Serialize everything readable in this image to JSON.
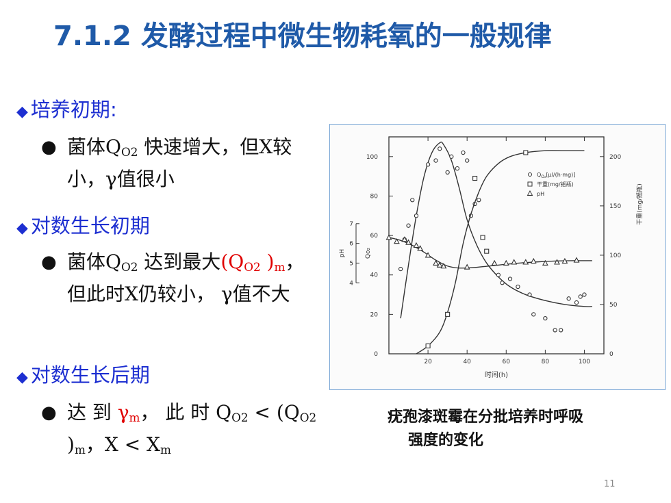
{
  "title": "7.1.2 发酵过程中微生物耗氧的一般规律",
  "sections": [
    {
      "heading": "培养初期",
      "heading_suffix": ":",
      "item": {
        "p1": "菌体Q",
        "sub1": "O2",
        "p2": " 快速增大，但X较小，γ值很小"
      }
    },
    {
      "heading": "对数生长初期",
      "item": {
        "p1": "菌体Q",
        "sub1": "O2",
        "p2": " 达到最大",
        "red1": "(Q",
        "red_sub1": "O2",
        "red2": " )",
        "red_sub2": "m",
        "p3": "，但此时X仍较小，  γ值不大"
      }
    },
    {
      "heading": "对数生长后期",
      "item": {
        "p1": "达 到 ",
        "red1": "γ",
        "red_sub1": "m",
        "p2": "， 此 时 Q",
        "sub1": "O2",
        "p3": " <  (Q",
        "sub2": "O2",
        "p4": " )",
        "sub3": "m",
        "p5": "，X < X",
        "sub4": "m"
      }
    }
  ],
  "figure_caption": {
    "line1": "疣孢漆斑霉在分批培养时呼吸",
    "line2": "强度的变化"
  },
  "page_number": "11",
  "chart_data": {
    "type": "line",
    "xlabel": "时间(h)",
    "ylabel_left_qo2": "Qo₂",
    "ylabel_left_ph": "pH",
    "ylabel_right": "干重(mg/摇瓶)",
    "xlim": [
      0,
      110
    ],
    "ylim_left": [
      0,
      110
    ],
    "ylim_right": [
      0,
      220
    ],
    "ylim_ph": [
      4,
      7
    ],
    "x_ticks": [
      20,
      40,
      60,
      80,
      100
    ],
    "y_ticks_left": [
      0,
      20,
      40,
      60,
      80,
      100
    ],
    "y_ticks_right": [
      0,
      50,
      100,
      150,
      200
    ],
    "ph_ticks": [
      4,
      5,
      6,
      7
    ],
    "tick_labels": {
      "x": [
        "20",
        "40",
        "60",
        "80",
        "100"
      ],
      "left": [
        "0",
        "20",
        "40",
        "60",
        "80",
        "100"
      ],
      "right": [
        "0",
        "50",
        "100",
        "150",
        "200"
      ],
      "ph": [
        "4",
        "5",
        "6",
        "7"
      ]
    },
    "legend": [
      {
        "marker": "circle",
        "label": "Q",
        "sub": "O₂",
        "label_rest": "[μl/(h·mg)]"
      },
      {
        "marker": "square",
        "label": "干重(mg/摇瓶)"
      },
      {
        "marker": "triangle",
        "label": "pH"
      }
    ],
    "legend_position": "top-right",
    "series": [
      {
        "name": "Qo2",
        "axis": "left",
        "curve_x": [
          6,
          10,
          14,
          18,
          22,
          26,
          28,
          32,
          36,
          40,
          45,
          50,
          56,
          62,
          70,
          80,
          90,
          100,
          104
        ],
        "curve_y": [
          18,
          45,
          70,
          90,
          102,
          107,
          106,
          98,
          84,
          68,
          55,
          46,
          39,
          34,
          30,
          27,
          25,
          24,
          24
        ],
        "points": [
          [
            6,
            43
          ],
          [
            8,
            58
          ],
          [
            10,
            65
          ],
          [
            12,
            78
          ],
          [
            14,
            70
          ],
          [
            20,
            96
          ],
          [
            24,
            98
          ],
          [
            26,
            104
          ],
          [
            30,
            92
          ],
          [
            32,
            100
          ],
          [
            35,
            94
          ],
          [
            38,
            102
          ],
          [
            40,
            98
          ],
          [
            42,
            70
          ],
          [
            44,
            76
          ],
          [
            46,
            78
          ],
          [
            56,
            40
          ],
          [
            58,
            36
          ],
          [
            62,
            38
          ],
          [
            66,
            34
          ],
          [
            72,
            30
          ],
          [
            74,
            20
          ],
          [
            80,
            18
          ],
          [
            85,
            12
          ],
          [
            88,
            12
          ],
          [
            92,
            28
          ],
          [
            96,
            26
          ],
          [
            98,
            29
          ],
          [
            100,
            30
          ]
        ]
      },
      {
        "name": "干重(mg/摇瓶)",
        "axis": "right",
        "curve_x": [
          14,
          20,
          26,
          30,
          34,
          38,
          42,
          46,
          50,
          56,
          62,
          70,
          80,
          90,
          100
        ],
        "curve_y": [
          0,
          8,
          22,
          42,
          72,
          112,
          142,
          164,
          180,
          193,
          200,
          204,
          206,
          206,
          206
        ],
        "points": [
          [
            20,
            8
          ],
          [
            30,
            40
          ],
          [
            44,
            178
          ],
          [
            48,
            118
          ],
          [
            50,
            104
          ],
          [
            70,
            204
          ]
        ]
      },
      {
        "name": "pH",
        "axis": "ph",
        "curve_x": [
          0,
          6,
          12,
          18,
          24,
          30,
          36,
          44,
          54,
          64,
          74,
          84,
          94,
          104
        ],
        "curve_y": [
          6.3,
          6.15,
          5.9,
          5.55,
          5.15,
          4.85,
          4.75,
          4.78,
          4.88,
          4.98,
          5.05,
          5.1,
          5.12,
          5.12
        ],
        "points": [
          [
            0,
            6.3
          ],
          [
            4,
            6.1
          ],
          [
            8,
            6.2
          ],
          [
            10,
            6.05
          ],
          [
            14,
            5.9
          ],
          [
            16,
            5.75
          ],
          [
            20,
            5.4
          ],
          [
            24,
            5.0
          ],
          [
            26,
            4.9
          ],
          [
            28,
            4.85
          ],
          [
            40,
            4.8
          ],
          [
            54,
            5.0
          ],
          [
            60,
            5.0
          ],
          [
            64,
            5.05
          ],
          [
            70,
            5.05
          ],
          [
            74,
            5.1
          ],
          [
            80,
            5.0
          ],
          [
            86,
            5.05
          ],
          [
            90,
            5.1
          ],
          [
            96,
            5.15
          ]
        ]
      }
    ]
  }
}
